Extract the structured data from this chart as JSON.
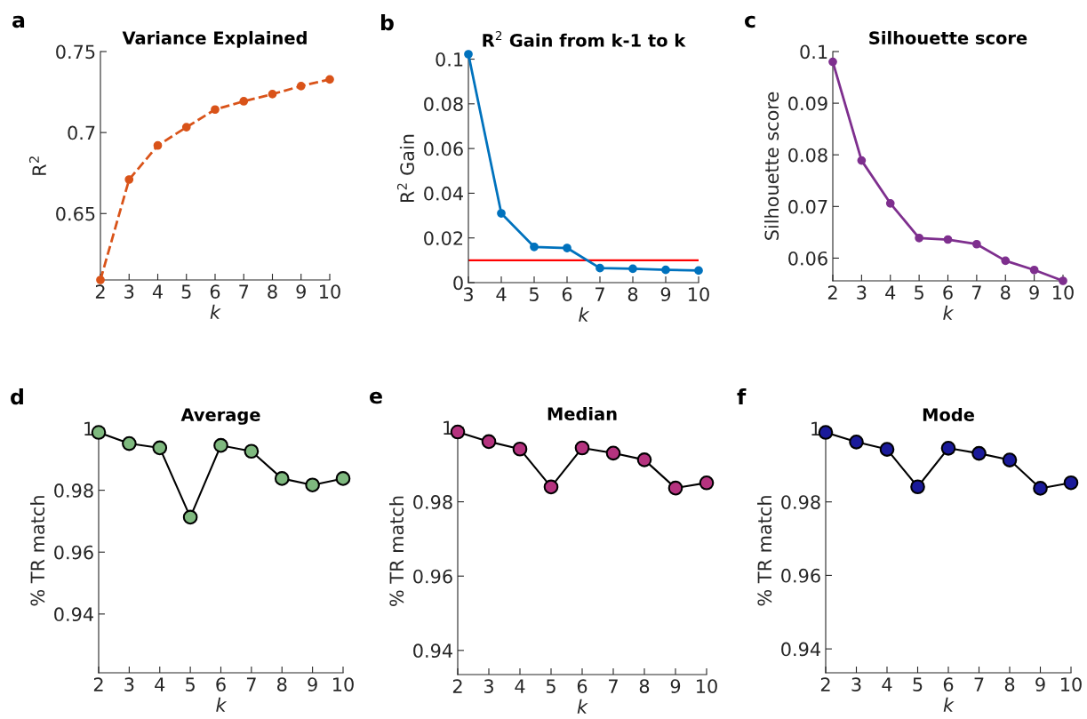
{
  "chart_data": [
    {
      "type": "line",
      "title": "Variance Explained",
      "xlabel": "k",
      "ylabel": "R$^{2}$",
      "annotations": [
        "a"
      ],
      "x": [
        2,
        3,
        4,
        5,
        6,
        7,
        8,
        9,
        10
      ],
      "xlim": [
        2,
        10
      ],
      "xticks": [
        2,
        3,
        4,
        5,
        6,
        7,
        8,
        9,
        10
      ],
      "ylim": [
        0.609,
        0.75
      ],
      "yticks": [
        0.65,
        0.7,
        0.75
      ],
      "marker": "circle",
      "line_style": "dashed",
      "grid": false,
      "series": [
        {
          "color": "#d95319",
          "values": [
            0.609,
            0.671,
            0.692,
            0.7033,
            0.7142,
            0.7193,
            0.7237,
            0.7287,
            0.7328
          ]
        }
      ]
    },
    {
      "type": "line",
      "title": "R$^{2}$ Gain from k-1 to k",
      "xlabel": "k",
      "ylabel": "R$^{2}$ Gain",
      "annotations": [
        "b"
      ],
      "x": [
        3,
        4,
        5,
        6,
        7,
        8,
        9,
        10
      ],
      "xlim": [
        3,
        10
      ],
      "xticks": [
        3,
        4,
        5,
        6,
        7,
        8,
        9,
        10
      ],
      "ylim": [
        0,
        0.1022
      ],
      "yticks": [
        0,
        0.02,
        0.04,
        0.06,
        0.08,
        0.1
      ],
      "marker": "circle",
      "line_style": "solid",
      "grid": false,
      "ref_lines": [
        {
          "axis": "y",
          "value": 0.01,
          "label": null,
          "color": "#ff0000",
          "line_style": "solid"
        }
      ],
      "series": [
        {
          "color": "#0072bd",
          "values": [
            0.1022,
            0.031,
            0.016,
            0.0155,
            0.0065,
            0.0062,
            0.0057,
            0.0054
          ]
        }
      ]
    },
    {
      "type": "line",
      "title": "Silhouette score",
      "xlabel": "k",
      "ylabel": "Silhouette score",
      "annotations": [
        "c"
      ],
      "x": [
        2,
        3,
        4,
        5,
        6,
        7,
        8,
        9,
        10
      ],
      "xlim": [
        2,
        10
      ],
      "xticks": [
        2,
        3,
        4,
        5,
        6,
        7,
        8,
        9,
        10
      ],
      "ylim": [
        0.0556,
        0.1
      ],
      "yticks": [
        0.06,
        0.07,
        0.08,
        0.09,
        0.1
      ],
      "marker": "circle",
      "line_style": "solid",
      "grid": false,
      "series": [
        {
          "color": "#7e2f8e",
          "values": [
            0.098,
            0.0789,
            0.0706,
            0.0639,
            0.0636,
            0.0627,
            0.0595,
            0.0577,
            0.0556
          ]
        }
      ]
    },
    {
      "type": "line",
      "title": "Average",
      "xlabel": "k",
      "ylabel": "% TR match",
      "annotations": [
        "d"
      ],
      "x": [
        2,
        3,
        4,
        5,
        6,
        7,
        8,
        9,
        10
      ],
      "xlim": [
        2,
        10
      ],
      "xticks": [
        2,
        3,
        4,
        5,
        6,
        7,
        8,
        9,
        10
      ],
      "ylim": [
        0.921,
        1
      ],
      "yticks": [
        0.94,
        0.96,
        0.98,
        1
      ],
      "marker": "circle",
      "line_style": "solid",
      "grid": false,
      "series": [
        {
          "color": "#000000",
          "colors": [
            "#7fb97f",
            "#7fb97f",
            "#7fb97f",
            "#7fb97f",
            "#7fb97f",
            "#7fb97f",
            "#7fb97f",
            "#7fb97f",
            "#7fb97f"
          ],
          "values": [
            0.9987,
            0.9951,
            0.9937,
            0.9713,
            0.9945,
            0.9926,
            0.9838,
            0.9817,
            0.9838
          ]
        }
      ]
    },
    {
      "type": "line",
      "title": "Median",
      "xlabel": "k",
      "ylabel": "% TR match",
      "annotations": [
        "e"
      ],
      "x": [
        2,
        3,
        4,
        5,
        6,
        7,
        8,
        9,
        10
      ],
      "xlim": [
        2,
        10
      ],
      "xticks": [
        2,
        3,
        4,
        5,
        6,
        7,
        8,
        9,
        10
      ],
      "ylim": [
        0.9335,
        1
      ],
      "yticks": [
        0.94,
        0.96,
        0.98,
        1
      ],
      "marker": "circle",
      "line_style": "solid",
      "grid": false,
      "series": [
        {
          "color": "#000000",
          "colors": [
            "#b5337f",
            "#b5337f",
            "#b5337f",
            "#b5337f",
            "#b5337f",
            "#b5337f",
            "#b5337f",
            "#b5337f",
            "#b5337f"
          ],
          "values": [
            0.9988,
            0.9962,
            0.9942,
            0.984,
            0.9945,
            0.9931,
            0.9913,
            0.9837,
            0.9851
          ]
        }
      ]
    },
    {
      "type": "line",
      "title": "Mode",
      "xlabel": "k",
      "ylabel": "% TR match",
      "annotations": [
        "f"
      ],
      "x": [
        2,
        3,
        4,
        5,
        6,
        7,
        8,
        9,
        10
      ],
      "xlim": [
        2,
        10
      ],
      "xticks": [
        2,
        3,
        4,
        5,
        6,
        7,
        8,
        9,
        10
      ],
      "ylim": [
        0.9335,
        1
      ],
      "yticks": [
        0.94,
        0.96,
        0.98,
        1
      ],
      "marker": "circle",
      "line_style": "solid",
      "grid": false,
      "series": [
        {
          "color": "#000000",
          "colors": [
            "#1a1a9a",
            "#1a1a9a",
            "#1a1a9a",
            "#1a1a9a",
            "#1a1a9a",
            "#1a1a9a",
            "#1a1a9a",
            "#1a1a9a",
            "#1a1a9a"
          ],
          "values": [
            0.9989,
            0.9963,
            0.9943,
            0.9841,
            0.9946,
            0.9932,
            0.9914,
            0.9837,
            0.9852
          ]
        }
      ]
    }
  ]
}
